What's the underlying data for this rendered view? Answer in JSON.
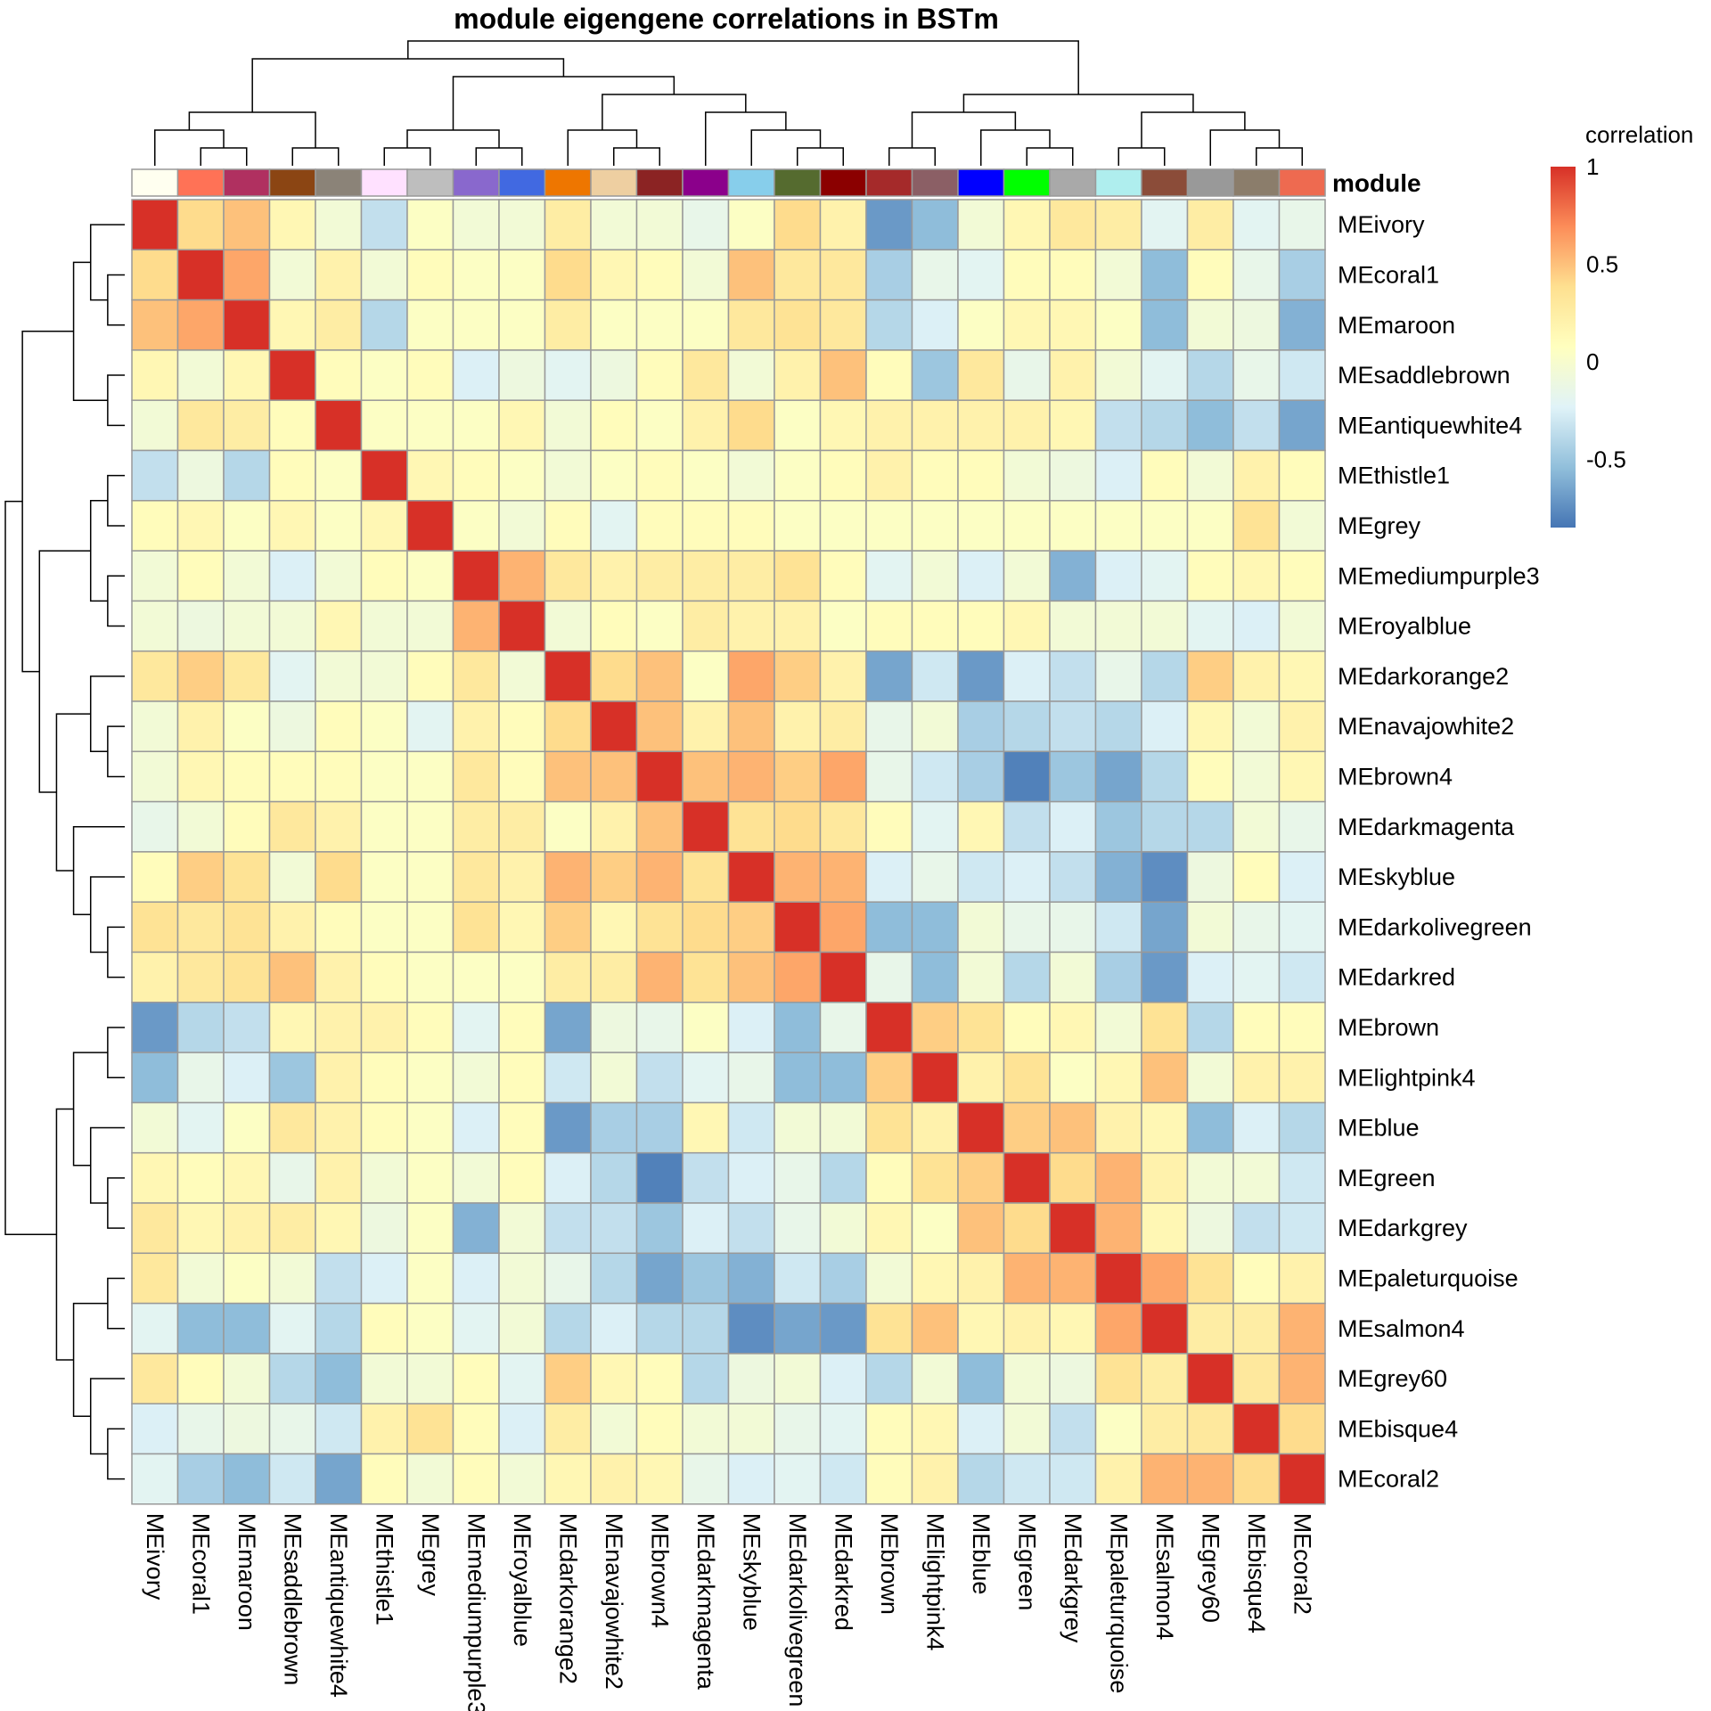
{
  "chart_data": {
    "type": "heatmap",
    "title": "module eigengene correlations in BSTm",
    "annotation_label": "module",
    "legend": {
      "title": "correlation",
      "ticks": [
        1,
        0.5,
        0,
        -0.5
      ],
      "tick_labels": [
        "1",
        "0.5",
        "0",
        "-0.5"
      ],
      "range": [
        -0.85,
        1
      ],
      "colors": [
        "#4575B4",
        "#91BFDB",
        "#E0F3F8",
        "#FFFFBF",
        "#FEE090",
        "#FC8D59",
        "#D73027"
      ],
      "placement": "top-right"
    },
    "rows": [
      "MEivory",
      "MEcoral1",
      "MEmaroon",
      "MEsaddlebrown",
      "MEantiquewhite4",
      "MEthistle1",
      "MEgrey",
      "MEmediumpurple3",
      "MEroyalblue",
      "MEdarkorange2",
      "MEnavajowhite2",
      "MEbrown4",
      "MEdarkmagenta",
      "MEskyblue",
      "MEdarkolivegreen",
      "MEdarkred",
      "MEbrown",
      "MElightpink4",
      "MEblue",
      "MEgreen",
      "MEdarkgrey",
      "MEpaleturquoise",
      "MEsalmon4",
      "MEgrey60",
      "MEbisque4",
      "MEcoral2"
    ],
    "columns": [
      "MEivory",
      "MEcoral1",
      "MEmaroon",
      "MEsaddlebrown",
      "MEantiquewhite4",
      "MEthistle1",
      "MEgrey",
      "MEmediumpurple3",
      "MEroyalblue",
      "MEdarkorange2",
      "MEnavajowhite2",
      "MEbrown4",
      "MEdarkmagenta",
      "MEskyblue",
      "MEdarkolivegreen",
      "MEdarkred",
      "MEbrown",
      "MElightpink4",
      "MEblue",
      "MEgreen",
      "MEdarkgrey",
      "MEpaleturquoise",
      "MEsalmon4",
      "MEgrey60",
      "MEbisque4",
      "MEcoral2"
    ],
    "module_colors": [
      "#FFFFF0",
      "#FF7256",
      "#B03060",
      "#8B4513",
      "#8B8378",
      "#FFE1FF",
      "#BEBEBE",
      "#8968CD",
      "#4169E1",
      "#EE7600",
      "#EECFA1",
      "#8B2323",
      "#8B008B",
      "#87CEEB",
      "#556B2F",
      "#8B0000",
      "#A52A2A",
      "#8B5F65",
      "#0000FF",
      "#00FF00",
      "#A9A9A9",
      "#AFEEEE",
      "#8B4C39",
      "#999999",
      "#8B7D6B",
      "#EE6A50"
    ],
    "values": [
      [
        1,
        0.4,
        0.5,
        0.15,
        -0.05,
        -0.35,
        0.05,
        -0.05,
        -0.05,
        0.25,
        -0.05,
        -0.05,
        -0.15,
        0.05,
        0.4,
        0.2,
        -0.7,
        -0.55,
        -0.05,
        0.15,
        0.3,
        0.25,
        -0.2,
        0.25,
        -0.2,
        -0.15
      ],
      [
        0.4,
        1,
        0.6,
        -0.05,
        0.2,
        -0.05,
        0.1,
        0.05,
        0.05,
        0.4,
        0.15,
        0.1,
        -0.05,
        0.5,
        0.3,
        0.3,
        -0.45,
        -0.15,
        -0.2,
        0.1,
        0.1,
        -0.05,
        -0.55,
        0.1,
        -0.15,
        -0.45
      ],
      [
        0.5,
        0.6,
        1,
        0.15,
        0.25,
        -0.4,
        0.05,
        0.05,
        0.05,
        0.25,
        0.05,
        0.05,
        0.05,
        0.3,
        0.35,
        0.3,
        -0.4,
        -0.25,
        0.05,
        0.15,
        0.15,
        0.05,
        -0.55,
        -0.05,
        -0.1,
        -0.6
      ],
      [
        0.15,
        -0.05,
        0.15,
        1,
        0.1,
        0.05,
        0.1,
        -0.25,
        -0.1,
        -0.2,
        -0.1,
        0.1,
        0.3,
        -0.05,
        0.2,
        0.5,
        0.1,
        -0.5,
        0.3,
        -0.15,
        0.2,
        -0.05,
        -0.2,
        -0.4,
        -0.15,
        -0.3
      ],
      [
        -0.05,
        0.3,
        0.25,
        0.1,
        1,
        0.05,
        0.05,
        0.05,
        0.15,
        -0.05,
        0.1,
        0.05,
        0.2,
        0.4,
        0.05,
        0.15,
        0.2,
        0.2,
        0.2,
        0.2,
        0.15,
        -0.35,
        -0.4,
        -0.55,
        -0.35,
        -0.65
      ],
      [
        -0.35,
        -0.1,
        -0.4,
        0.1,
        0.05,
        1,
        0.15,
        0.1,
        0.05,
        -0.05,
        0.05,
        0.1,
        0.05,
        -0.05,
        0.05,
        0.1,
        0.2,
        0.1,
        0.1,
        -0.05,
        -0.1,
        -0.25,
        0.1,
        -0.05,
        0.2,
        0.1
      ],
      [
        0.1,
        0.15,
        0.05,
        0.15,
        0.05,
        0.15,
        1,
        0.05,
        -0.05,
        0.1,
        -0.2,
        0.1,
        0.1,
        0.1,
        0.05,
        0.05,
        0.05,
        0.05,
        0.05,
        0.05,
        0.05,
        0.05,
        0.05,
        0.05,
        0.35,
        -0.05
      ],
      [
        -0.05,
        0.1,
        -0.05,
        -0.25,
        -0.05,
        0.1,
        0.05,
        1,
        0.55,
        0.3,
        0.2,
        0.25,
        0.25,
        0.25,
        0.35,
        0.1,
        -0.2,
        -0.05,
        -0.25,
        -0.05,
        -0.6,
        -0.25,
        -0.2,
        0.1,
        0.15,
        0.1
      ],
      [
        -0.05,
        -0.1,
        -0.05,
        -0.05,
        0.15,
        -0.05,
        -0.05,
        0.55,
        1,
        -0.05,
        0.1,
        0.05,
        0.25,
        0.2,
        0.2,
        0.05,
        0.1,
        0.1,
        0.1,
        0.15,
        -0.05,
        -0.05,
        -0.05,
        -0.2,
        -0.25,
        -0.05
      ],
      [
        0.3,
        0.45,
        0.3,
        -0.2,
        -0.05,
        -0.05,
        0.1,
        0.3,
        -0.05,
        1,
        0.4,
        0.5,
        0.05,
        0.6,
        0.45,
        0.2,
        -0.65,
        -0.3,
        -0.7,
        -0.25,
        -0.35,
        -0.15,
        -0.4,
        0.45,
        0.2,
        0.15
      ],
      [
        -0.05,
        0.2,
        0.05,
        -0.1,
        0.1,
        0.05,
        -0.2,
        0.2,
        0.1,
        0.4,
        1,
        0.5,
        0.2,
        0.5,
        0.2,
        0.25,
        -0.15,
        -0.05,
        -0.45,
        -0.4,
        -0.35,
        -0.4,
        -0.25,
        0.15,
        -0.05,
        0.2
      ],
      [
        -0.05,
        0.15,
        0.1,
        0.1,
        0.1,
        0.05,
        0.05,
        0.3,
        0.1,
        0.5,
        0.5,
        1,
        0.5,
        0.55,
        0.45,
        0.6,
        -0.15,
        -0.3,
        -0.45,
        -0.8,
        -0.5,
        -0.65,
        -0.4,
        0.1,
        -0.05,
        0.15
      ],
      [
        -0.15,
        -0.05,
        0.1,
        0.3,
        0.2,
        0.05,
        0.05,
        0.25,
        0.25,
        0.05,
        0.2,
        0.5,
        1,
        0.35,
        0.4,
        0.3,
        0.1,
        -0.2,
        0.15,
        -0.35,
        -0.25,
        -0.5,
        -0.4,
        -0.4,
        -0.05,
        -0.15
      ],
      [
        0.1,
        0.45,
        0.35,
        -0.05,
        0.4,
        0.05,
        0.05,
        0.3,
        0.2,
        0.55,
        0.45,
        0.55,
        0.35,
        1,
        0.55,
        0.55,
        -0.25,
        -0.15,
        -0.3,
        -0.25,
        -0.35,
        -0.6,
        -0.75,
        -0.1,
        0.1,
        -0.25
      ],
      [
        0.35,
        0.3,
        0.35,
        0.2,
        0.1,
        0.05,
        0.05,
        0.35,
        0.15,
        0.45,
        0.15,
        0.35,
        0.4,
        0.45,
        1,
        0.6,
        -0.55,
        -0.55,
        -0.05,
        -0.15,
        -0.15,
        -0.3,
        -0.65,
        -0.05,
        -0.15,
        -0.2
      ],
      [
        0.2,
        0.3,
        0.35,
        0.5,
        0.2,
        0.1,
        0.05,
        0.05,
        0.05,
        0.25,
        0.25,
        0.55,
        0.35,
        0.5,
        0.6,
        1,
        -0.15,
        -0.55,
        -0.05,
        -0.4,
        -0.05,
        -0.45,
        -0.7,
        -0.25,
        -0.2,
        -0.3
      ],
      [
        -0.7,
        -0.4,
        -0.35,
        0.15,
        0.2,
        0.2,
        0.1,
        -0.2,
        0.1,
        -0.65,
        -0.1,
        -0.15,
        0.05,
        -0.25,
        -0.55,
        -0.15,
        1,
        0.45,
        0.35,
        0.1,
        0.15,
        -0.05,
        0.35,
        -0.4,
        0.1,
        0.1
      ],
      [
        -0.55,
        -0.15,
        -0.25,
        -0.5,
        0.2,
        0.1,
        0.05,
        -0.05,
        0.1,
        -0.3,
        -0.05,
        -0.35,
        -0.2,
        -0.15,
        -0.55,
        -0.55,
        0.45,
        1,
        0.2,
        0.35,
        0.05,
        0.15,
        0.5,
        -0.05,
        0.2,
        0.2
      ],
      [
        -0.05,
        -0.2,
        0.05,
        0.3,
        0.2,
        0.1,
        0.05,
        -0.25,
        0.1,
        -0.7,
        -0.45,
        -0.45,
        0.15,
        -0.3,
        -0.05,
        -0.05,
        0.35,
        0.2,
        1,
        0.45,
        0.5,
        0.2,
        0.15,
        -0.55,
        -0.25,
        -0.4
      ],
      [
        0.15,
        0.1,
        0.15,
        -0.15,
        0.2,
        -0.05,
        0.05,
        -0.05,
        0.1,
        -0.25,
        -0.4,
        -0.8,
        -0.35,
        -0.25,
        -0.15,
        -0.4,
        0.1,
        0.35,
        0.45,
        1,
        0.4,
        0.55,
        0.2,
        -0.05,
        -0.05,
        -0.3
      ],
      [
        0.3,
        0.15,
        0.2,
        0.25,
        0.15,
        -0.1,
        0.05,
        -0.6,
        -0.05,
        -0.35,
        -0.35,
        -0.5,
        -0.25,
        -0.35,
        -0.15,
        -0.05,
        0.15,
        0.05,
        0.5,
        0.4,
        1,
        0.55,
        0.15,
        -0.1,
        -0.35,
        -0.3
      ],
      [
        0.3,
        -0.05,
        0.05,
        -0.05,
        -0.35,
        -0.25,
        0.05,
        -0.25,
        -0.05,
        -0.15,
        -0.4,
        -0.65,
        -0.5,
        -0.6,
        -0.3,
        -0.45,
        -0.05,
        0.15,
        0.2,
        0.55,
        0.55,
        1,
        0.6,
        0.35,
        0.1,
        0.2
      ],
      [
        -0.2,
        -0.55,
        -0.55,
        -0.2,
        -0.4,
        0.1,
        0.05,
        -0.2,
        -0.05,
        -0.4,
        -0.25,
        -0.4,
        -0.4,
        -0.75,
        -0.65,
        -0.7,
        0.35,
        0.5,
        0.15,
        0.2,
        0.15,
        0.6,
        1,
        0.25,
        0.25,
        0.55
      ],
      [
        0.3,
        0.1,
        -0.05,
        -0.4,
        -0.55,
        -0.05,
        -0.05,
        0.1,
        -0.2,
        0.45,
        0.15,
        0.1,
        -0.4,
        -0.1,
        -0.05,
        -0.25,
        -0.4,
        -0.05,
        -0.55,
        -0.05,
        -0.1,
        0.35,
        0.25,
        1,
        0.3,
        0.55
      ],
      [
        -0.25,
        -0.15,
        -0.1,
        -0.15,
        -0.3,
        0.2,
        0.35,
        0.1,
        -0.25,
        0.25,
        -0.05,
        0.1,
        -0.05,
        -0.05,
        -0.15,
        -0.2,
        0.1,
        0.15,
        -0.25,
        -0.05,
        -0.35,
        0.05,
        0.25,
        0.3,
        1,
        0.4
      ],
      [
        -0.2,
        -0.45,
        -0.55,
        -0.3,
        -0.65,
        0.1,
        -0.05,
        0.1,
        -0.05,
        0.15,
        0.2,
        0.15,
        -0.15,
        -0.25,
        -0.2,
        -0.3,
        0.1,
        0.2,
        -0.4,
        -0.3,
        -0.3,
        0.2,
        0.55,
        0.55,
        0.4,
        1
      ]
    ]
  }
}
